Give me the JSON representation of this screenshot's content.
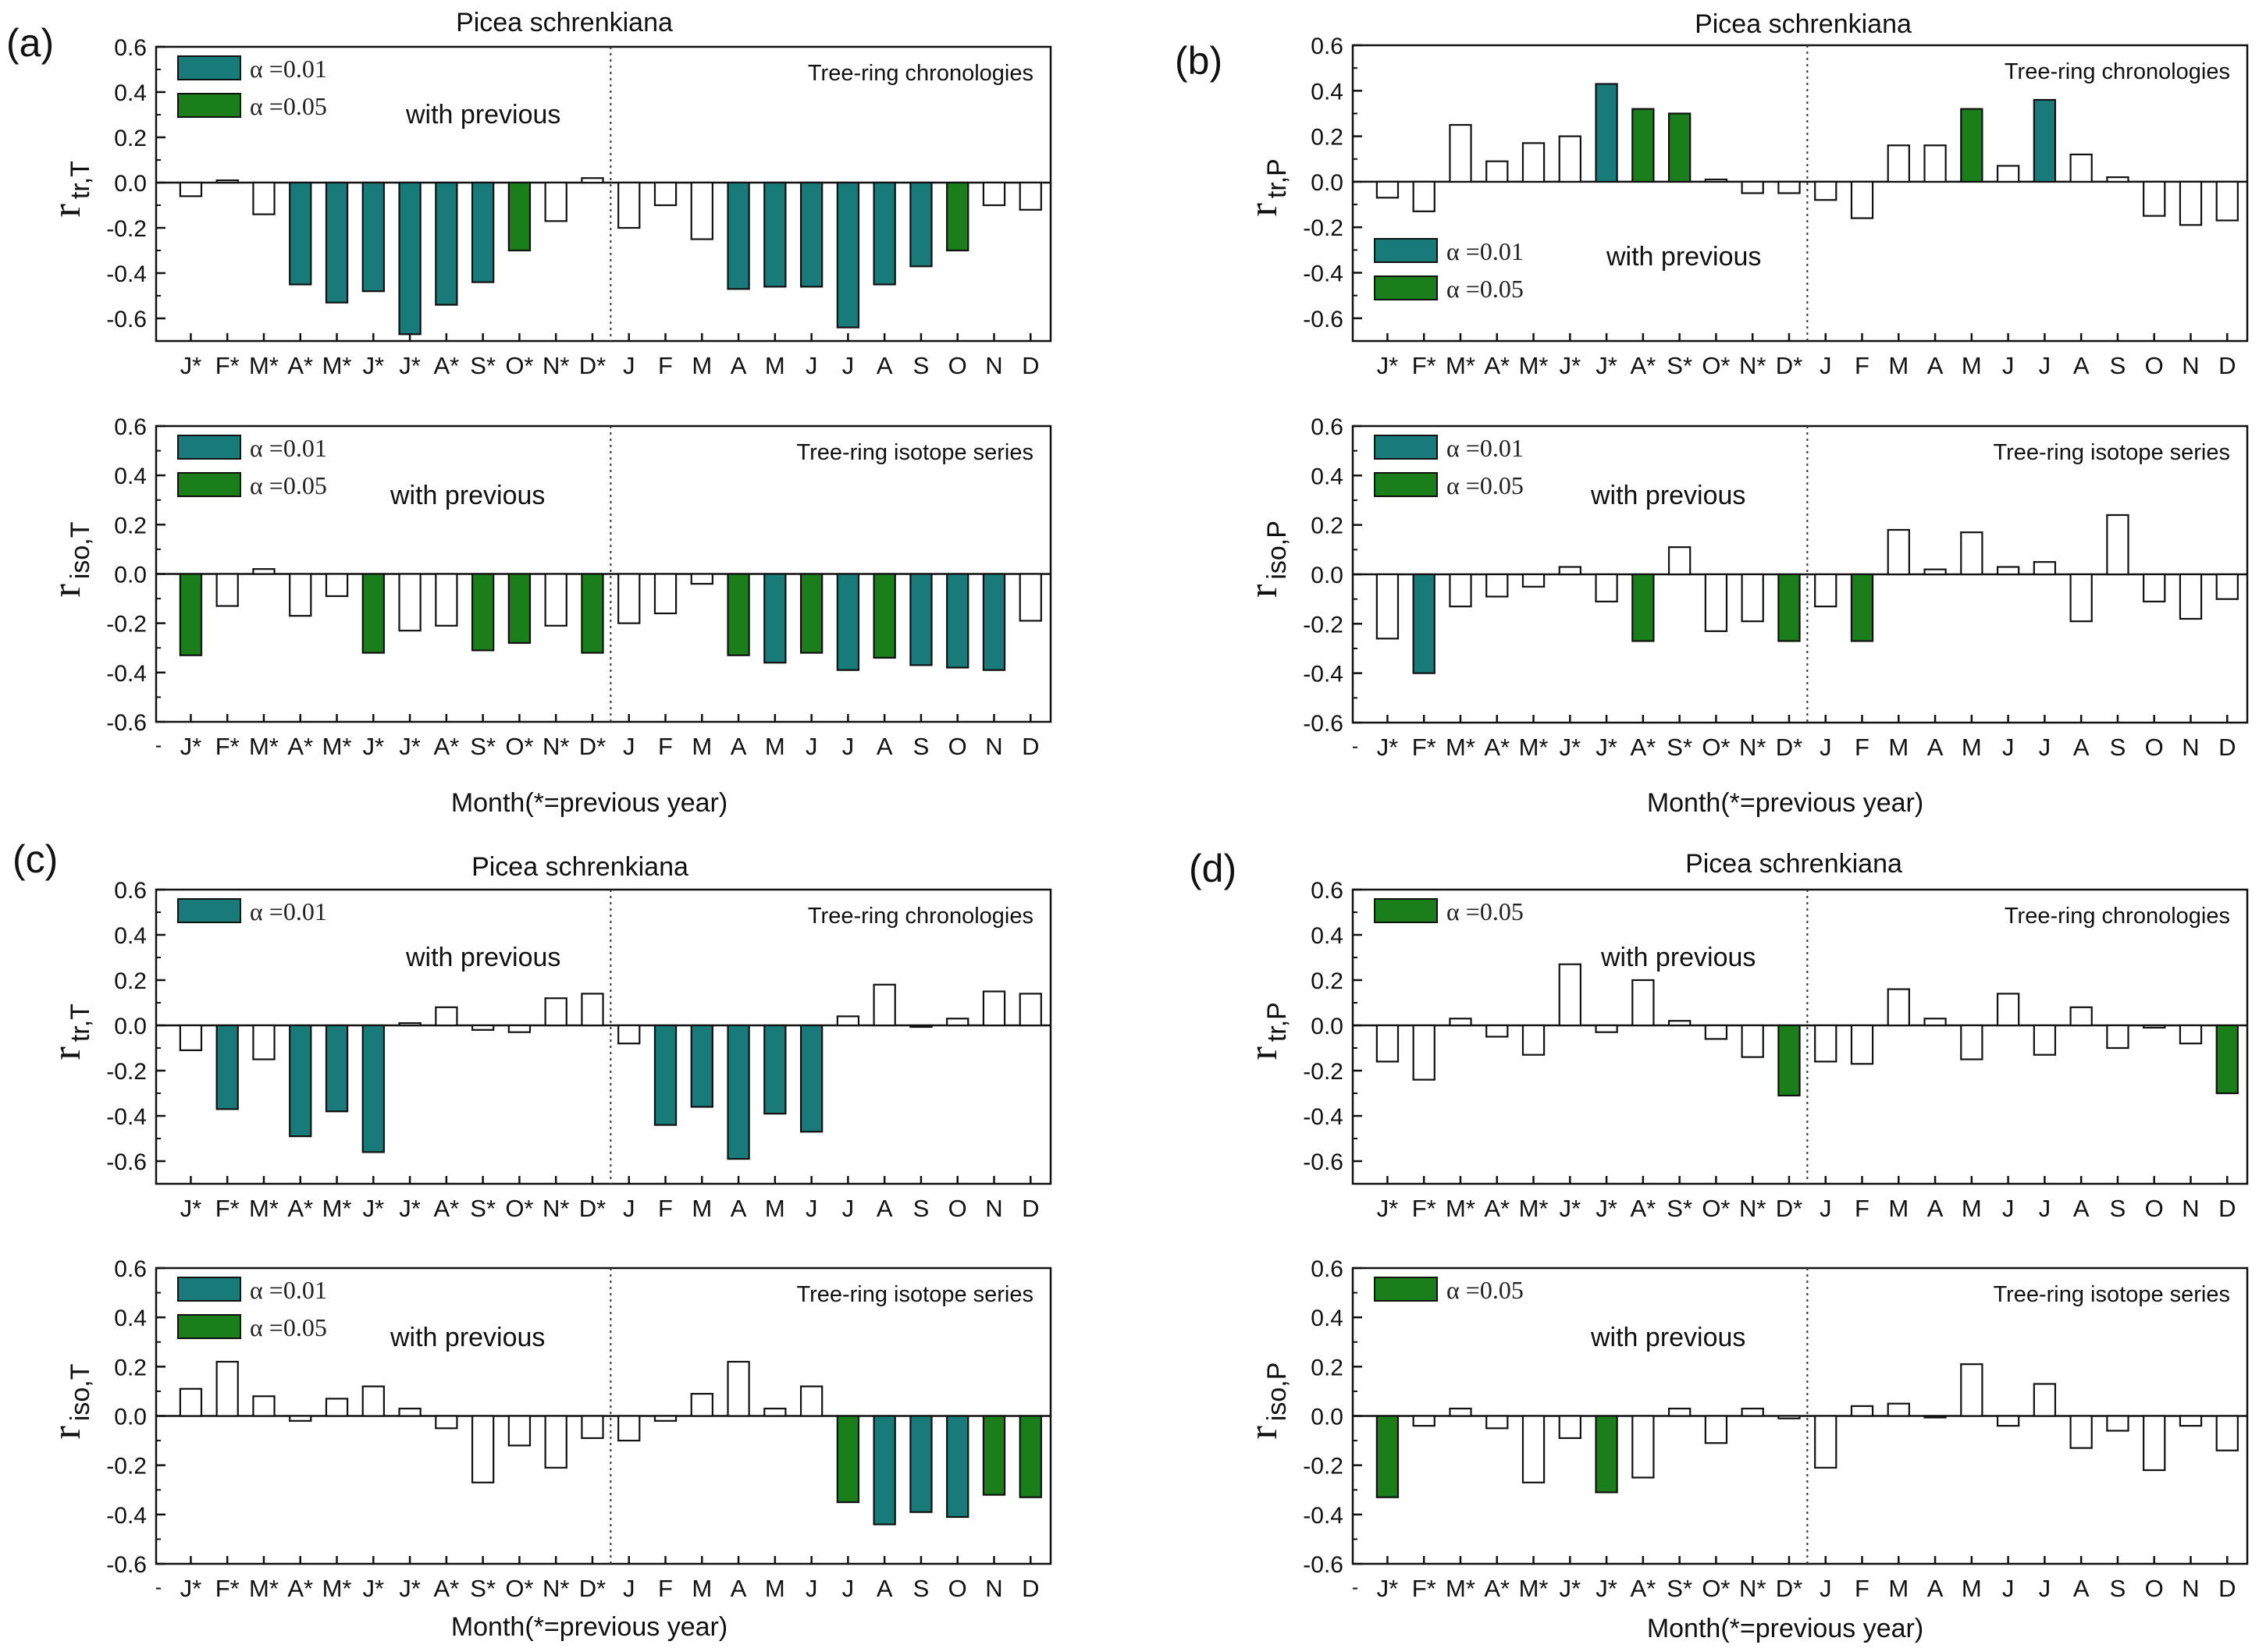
{
  "colors": {
    "sig01": "#197a7a",
    "sig05": "#1a7f1a",
    "ns": "#ffffff",
    "edge": "#111111"
  },
  "months": [
    "J*",
    "F*",
    "M*",
    "A*",
    "M*",
    "J*",
    "J*",
    "A*",
    "S*",
    "O*",
    "N*",
    "D*",
    "J",
    "F",
    "M",
    "A",
    "M",
    "J",
    "J",
    "A",
    "S",
    "O",
    "N",
    "D"
  ],
  "xlabel": "Month(*=previous year)",
  "chart_data": [
    {
      "id": "a1",
      "panel_label": "(a)",
      "type": "bar",
      "title": "Picea schrenkiana",
      "series_label": "Tree-ring chronologies",
      "note": "with previous",
      "ylabel": {
        "main": "r",
        "sub": "tr,T"
      },
      "ylim": [
        -0.7,
        0.6
      ],
      "ticks": [
        "0.6",
        "0.4",
        "0.2",
        "0.0",
        "-0.2",
        "-0.4",
        "-0.6"
      ],
      "legend": [
        {
          "sig": "01",
          "text": "α =0.01"
        },
        {
          "sig": "05",
          "text": "α =0.05"
        }
      ],
      "values": [
        -0.06,
        0.01,
        -0.14,
        -0.45,
        -0.53,
        -0.48,
        -0.67,
        -0.54,
        -0.44,
        -0.3,
        -0.17,
        0.02,
        -0.2,
        -0.1,
        -0.25,
        -0.47,
        -0.46,
        -0.46,
        -0.64,
        -0.45,
        -0.37,
        -0.3,
        -0.1,
        -0.12
      ],
      "sig": [
        "",
        "",
        "",
        "01",
        "01",
        "01",
        "01",
        "01",
        "01",
        "05",
        "",
        "",
        "",
        "",
        "",
        "01",
        "01",
        "01",
        "01",
        "01",
        "01",
        "05",
        "",
        ""
      ]
    },
    {
      "id": "a2",
      "type": "bar",
      "series_label": "Tree-ring isotope series",
      "note": "with previous",
      "ylabel": {
        "main": "r",
        "sub": "iso,T"
      },
      "ylim": [
        -0.6,
        0.6
      ],
      "ticks": [
        "0.6",
        "0.4",
        "0.2",
        "0.0",
        "-0.2",
        "-0.4",
        "-0.6"
      ],
      "legend": [
        {
          "sig": "01",
          "text": "α =0.01"
        },
        {
          "sig": "05",
          "text": "α =0.05"
        }
      ],
      "xlabel": "Month(*=previous year)",
      "values": [
        -0.33,
        -0.13,
        0.02,
        -0.17,
        -0.09,
        -0.32,
        -0.23,
        -0.21,
        -0.31,
        -0.28,
        -0.21,
        -0.32,
        -0.2,
        -0.16,
        -0.04,
        -0.33,
        -0.36,
        -0.32,
        -0.39,
        -0.34,
        -0.37,
        -0.38,
        -0.39,
        -0.19
      ],
      "sig": [
        "05",
        "",
        "",
        "",
        "",
        "05",
        "",
        "",
        "05",
        "05",
        "",
        "05",
        "",
        "",
        "",
        "05",
        "01",
        "05",
        "01",
        "05",
        "01",
        "01",
        "01",
        ""
      ]
    },
    {
      "id": "b1",
      "panel_label": "(b)",
      "type": "bar",
      "title": "Picea schrenkiana",
      "series_label": "Tree-ring chronologies",
      "note": "with previous",
      "ylabel": {
        "main": "r",
        "sub": "tr,P"
      },
      "ylim": [
        -0.7,
        0.6
      ],
      "ticks": [
        "0.6",
        "0.4",
        "0.2",
        "0.0",
        "-0.2",
        "-0.4",
        "-0.6"
      ],
      "legend": [
        {
          "sig": "01",
          "text": "α =0.01"
        },
        {
          "sig": "05",
          "text": "α =0.05"
        }
      ],
      "values": [
        -0.07,
        -0.13,
        0.25,
        0.09,
        0.17,
        0.2,
        0.43,
        0.32,
        0.3,
        0.01,
        -0.05,
        -0.05,
        -0.08,
        -0.16,
        0.16,
        0.16,
        0.32,
        0.07,
        0.36,
        0.12,
        0.02,
        -0.15,
        -0.19,
        -0.17
      ],
      "sig": [
        "",
        "",
        "",
        "",
        "",
        "",
        "01",
        "05",
        "05",
        "",
        "",
        "",
        "",
        "",
        "",
        "",
        "05",
        "",
        "01",
        "",
        "",
        "",
        "",
        ""
      ]
    },
    {
      "id": "b2",
      "type": "bar",
      "series_label": "Tree-ring isotope series",
      "note": "with previous",
      "ylabel": {
        "main": "r",
        "sub": "iso,P"
      },
      "ylim": [
        -0.6,
        0.6
      ],
      "ticks": [
        "0.6",
        "0.4",
        "0.2",
        "0.0",
        "-0.2",
        "-0.4",
        "-0.6"
      ],
      "legend": [
        {
          "sig": "01",
          "text": "α =0.01"
        },
        {
          "sig": "05",
          "text": "α =0.05"
        }
      ],
      "xlabel": "Month(*=previous year)",
      "values": [
        -0.26,
        -0.4,
        -0.13,
        -0.09,
        -0.05,
        0.03,
        -0.11,
        -0.27,
        0.11,
        -0.23,
        -0.19,
        -0.27,
        -0.13,
        -0.27,
        0.18,
        0.02,
        0.17,
        0.03,
        0.05,
        -0.19,
        0.24,
        -0.11,
        -0.18,
        -0.1
      ],
      "sig": [
        "",
        "01",
        "",
        "",
        "",
        "",
        "",
        "05",
        "",
        "",
        "",
        "05",
        "",
        "05",
        "",
        "",
        "",
        "",
        "",
        "",
        "",
        "",
        "",
        ""
      ]
    },
    {
      "id": "c1",
      "panel_label": "(c)",
      "type": "bar",
      "title": "Picea schrenkiana",
      "series_label": "Tree-ring chronologies",
      "note": "with previous",
      "ylabel": {
        "main": "r",
        "sub": "tr,T"
      },
      "ylim": [
        -0.7,
        0.6
      ],
      "ticks": [
        "0.6",
        "0.4",
        "0.2",
        "0.0",
        "-0.2",
        "-0.4",
        "-0.6"
      ],
      "legend": [
        {
          "sig": "01",
          "text": "α =0.01"
        }
      ],
      "values": [
        -0.11,
        -0.37,
        -0.15,
        -0.49,
        -0.38,
        -0.56,
        0.01,
        0.08,
        -0.02,
        -0.03,
        0.12,
        0.14,
        -0.08,
        -0.44,
        -0.36,
        -0.59,
        -0.39,
        -0.47,
        0.04,
        0.18,
        0.0,
        0.03,
        0.15,
        0.14
      ],
      "sig": [
        "",
        "01",
        "",
        "01",
        "01",
        "01",
        "",
        "",
        "",
        "",
        "",
        "",
        "",
        "01",
        "01",
        "01",
        "01",
        "01",
        "",
        "",
        "",
        "",
        "",
        ""
      ]
    },
    {
      "id": "c2",
      "type": "bar",
      "series_label": "Tree-ring isotope series",
      "note": "with previous",
      "ylabel": {
        "main": "r",
        "sub": "iso,T"
      },
      "ylim": [
        -0.6,
        0.6
      ],
      "ticks": [
        "0.6",
        "0.4",
        "0.2",
        "0.0",
        "-0.2",
        "-0.4",
        "-0.6"
      ],
      "legend": [
        {
          "sig": "01",
          "text": "α =0.01"
        },
        {
          "sig": "05",
          "text": "α =0.05"
        }
      ],
      "xlabel": "Month(*=previous year)",
      "values": [
        0.11,
        0.22,
        0.08,
        -0.02,
        0.07,
        0.12,
        0.03,
        -0.05,
        -0.27,
        -0.12,
        -0.21,
        -0.09,
        -0.1,
        -0.02,
        0.09,
        0.22,
        0.03,
        0.12,
        -0.35,
        -0.44,
        -0.39,
        -0.41,
        -0.32,
        -0.33
      ],
      "sig": [
        "",
        "",
        "",
        "",
        "",
        "",
        "",
        "",
        "",
        "",
        "",
        "",
        "",
        "",
        "",
        "",
        "",
        "",
        "05",
        "01",
        "01",
        "01",
        "05",
        "05"
      ]
    },
    {
      "id": "d1",
      "panel_label": "(d)",
      "type": "bar",
      "title": "Picea schrenkiana",
      "series_label": "Tree-ring chronologies",
      "note": "with previous",
      "ylabel": {
        "main": "r",
        "sub": "tr,P"
      },
      "ylim": [
        -0.7,
        0.6
      ],
      "ticks": [
        "0.6",
        "0.4",
        "0.2",
        "0.0",
        "-0.2",
        "-0.4",
        "-0.6"
      ],
      "legend": [
        {
          "sig": "05",
          "text": "α =0.05"
        }
      ],
      "values": [
        -0.16,
        -0.24,
        0.03,
        -0.05,
        -0.13,
        0.27,
        -0.03,
        0.2,
        0.02,
        -0.06,
        -0.14,
        -0.31,
        -0.16,
        -0.17,
        0.16,
        0.03,
        -0.15,
        0.14,
        -0.13,
        0.08,
        -0.1,
        -0.01,
        -0.08,
        -0.3
      ],
      "sig": [
        "",
        "",
        "",
        "",
        "",
        "",
        "",
        "",
        "",
        "",
        "",
        "05",
        "",
        "",
        "",
        "",
        "",
        "",
        "",
        "",
        "",
        "",
        "",
        "05"
      ]
    },
    {
      "id": "d2",
      "type": "bar",
      "series_label": "Tree-ring isotope series",
      "note": "with previous",
      "ylabel": {
        "main": "r",
        "sub": "iso,P"
      },
      "ylim": [
        -0.6,
        0.6
      ],
      "ticks": [
        "0.6",
        "0.4",
        "0.2",
        "0.0",
        "-0.2",
        "-0.4",
        "-0.6"
      ],
      "legend": [
        {
          "sig": "05",
          "text": "α =0.05"
        }
      ],
      "xlabel": "Month(*=previous year)",
      "values": [
        -0.33,
        -0.04,
        0.03,
        -0.05,
        -0.27,
        -0.09,
        -0.31,
        -0.25,
        0.03,
        -0.11,
        0.03,
        -0.01,
        -0.21,
        0.04,
        0.05,
        0.0,
        0.21,
        -0.04,
        0.13,
        -0.13,
        -0.06,
        -0.22,
        -0.04,
        -0.14
      ],
      "sig": [
        "05",
        "",
        "",
        "",
        "",
        "",
        "05",
        "",
        "",
        "",
        "",
        "",
        "",
        "",
        "",
        "",
        "",
        "",
        "",
        "",
        "",
        "",
        "",
        ""
      ]
    }
  ]
}
